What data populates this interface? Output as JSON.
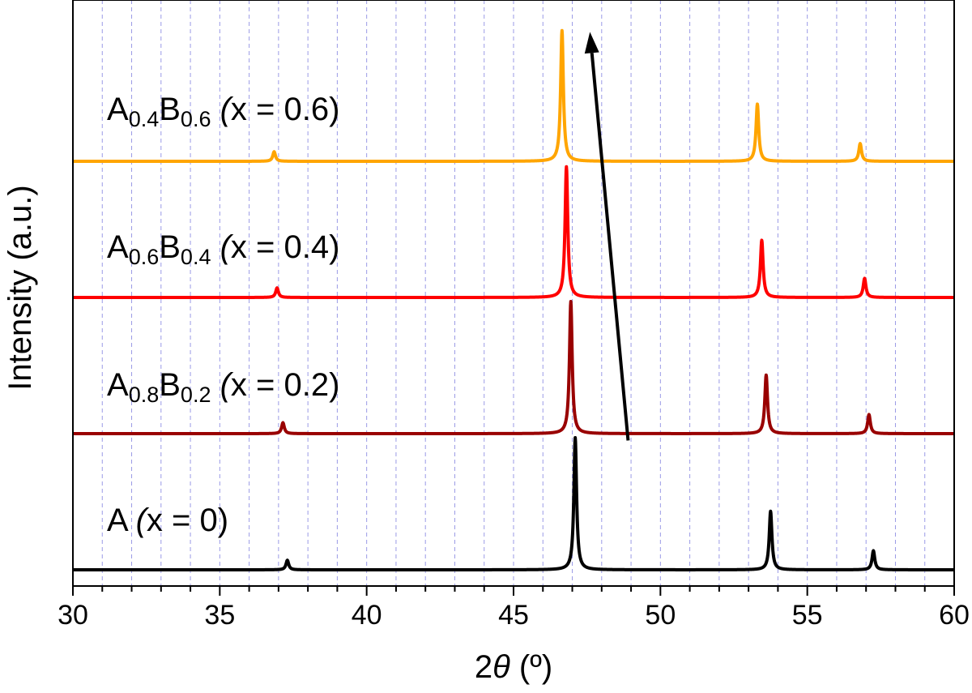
{
  "chart_data": {
    "type": "line",
    "title": "",
    "xlabel": {
      "prefix": "2",
      "theta": "θ",
      "unit": " (º)"
    },
    "ylabel": "Intensity (a.u.)",
    "xlim": [
      30,
      60
    ],
    "x_ticks": [
      30,
      35,
      40,
      45,
      50,
      55,
      60
    ],
    "x_tick_labels": [
      "30",
      "35",
      "40",
      "45",
      "50",
      "55",
      "60"
    ],
    "x_minor_step": 1,
    "vertical_grid": true,
    "grid_color": "#9a9ae6",
    "yticks_shown": false,
    "arrow": {
      "from": [
        48.9,
        0.95
      ],
      "to": [
        47.6,
        3.95
      ]
    },
    "series": [
      {
        "name": "A (x = 0)",
        "label_parts": [
          {
            "t": "A ",
            "sub": false,
            "italic": false
          },
          {
            "t": "(",
            "sub": false,
            "italic": true
          },
          {
            "t": "x = 0)",
            "sub": false,
            "italic": false
          }
        ],
        "color": "#000000",
        "offset": 0,
        "peaks": [
          {
            "x": 37.3,
            "h": 0.07
          },
          {
            "x": 47.1,
            "h": 0.97
          },
          {
            "x": 53.75,
            "h": 0.43
          },
          {
            "x": 57.25,
            "h": 0.14
          }
        ]
      },
      {
        "name": "A0.8B0.2 (x = 0.2)",
        "label_parts": [
          {
            "t": "A",
            "sub": false,
            "italic": false
          },
          {
            "t": "0.8",
            "sub": true,
            "italic": false
          },
          {
            "t": "B",
            "sub": false,
            "italic": false
          },
          {
            "t": "0.2",
            "sub": true,
            "italic": false
          },
          {
            "t": " (",
            "sub": false,
            "italic": true
          },
          {
            "t": "x = 0.2)",
            "sub": false,
            "italic": false
          }
        ],
        "color": "#990000",
        "offset": 1,
        "peaks": [
          {
            "x": 37.15,
            "h": 0.08
          },
          {
            "x": 46.95,
            "h": 0.97
          },
          {
            "x": 53.6,
            "h": 0.43
          },
          {
            "x": 57.1,
            "h": 0.14
          }
        ]
      },
      {
        "name": "A0.6B0.4 (x = 0.4)",
        "label_parts": [
          {
            "t": "A",
            "sub": false,
            "italic": false
          },
          {
            "t": "0.6",
            "sub": true,
            "italic": false
          },
          {
            "t": "B",
            "sub": false,
            "italic": false
          },
          {
            "t": "0.4",
            "sub": true,
            "italic": false
          },
          {
            "t": " (",
            "sub": false,
            "italic": true
          },
          {
            "t": "x = 0.4)",
            "sub": false,
            "italic": false
          }
        ],
        "color": "#ff0000",
        "offset": 2,
        "peaks": [
          {
            "x": 36.95,
            "h": 0.07
          },
          {
            "x": 46.8,
            "h": 0.96
          },
          {
            "x": 53.45,
            "h": 0.42
          },
          {
            "x": 56.95,
            "h": 0.14
          }
        ]
      },
      {
        "name": "A0.4B0.6 (x = 0.6)",
        "label_parts": [
          {
            "t": "A",
            "sub": false,
            "italic": false
          },
          {
            "t": "0.4",
            "sub": true,
            "italic": false
          },
          {
            "t": "B",
            "sub": false,
            "italic": false
          },
          {
            "t": "0.6",
            "sub": true,
            "italic": false
          },
          {
            "t": " (",
            "sub": false,
            "italic": true
          },
          {
            "t": "x = 0.6)",
            "sub": false,
            "italic": false
          }
        ],
        "color": "#ffa500",
        "offset": 3,
        "peaks": [
          {
            "x": 36.85,
            "h": 0.07
          },
          {
            "x": 46.65,
            "h": 0.96
          },
          {
            "x": 53.3,
            "h": 0.42
          },
          {
            "x": 56.8,
            "h": 0.13
          }
        ]
      }
    ]
  }
}
